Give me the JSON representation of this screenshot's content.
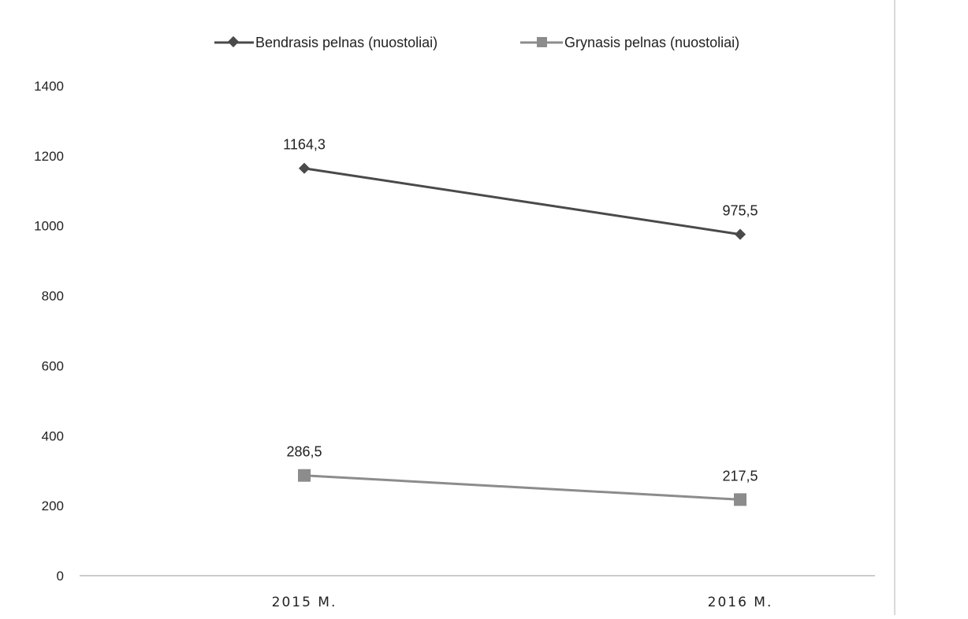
{
  "chart_data": {
    "type": "line",
    "categories": [
      "2015 M.",
      "2016 M."
    ],
    "series": [
      {
        "name": "Bendrasis pelnas (nuostoliai)",
        "values": [
          1164.3,
          975.5
        ],
        "value_labels": [
          "1164,3",
          "975,5"
        ],
        "color": "#4a4a4a",
        "marker": "diamond"
      },
      {
        "name": "Grynasis pelnas (nuostoliai)",
        "values": [
          286.5,
          217.5
        ],
        "value_labels": [
          "286,5",
          "217,5"
        ],
        "color": "#8c8c8c",
        "marker": "square"
      }
    ],
    "ylim": [
      0,
      1400
    ],
    "yticks": [
      0,
      200,
      400,
      600,
      800,
      1000,
      1200,
      1400
    ],
    "ytick_labels": [
      "0",
      "200",
      "400",
      "600",
      "800",
      "1000",
      "1200",
      "1400"
    ],
    "legend_position": "top",
    "grid": false
  }
}
